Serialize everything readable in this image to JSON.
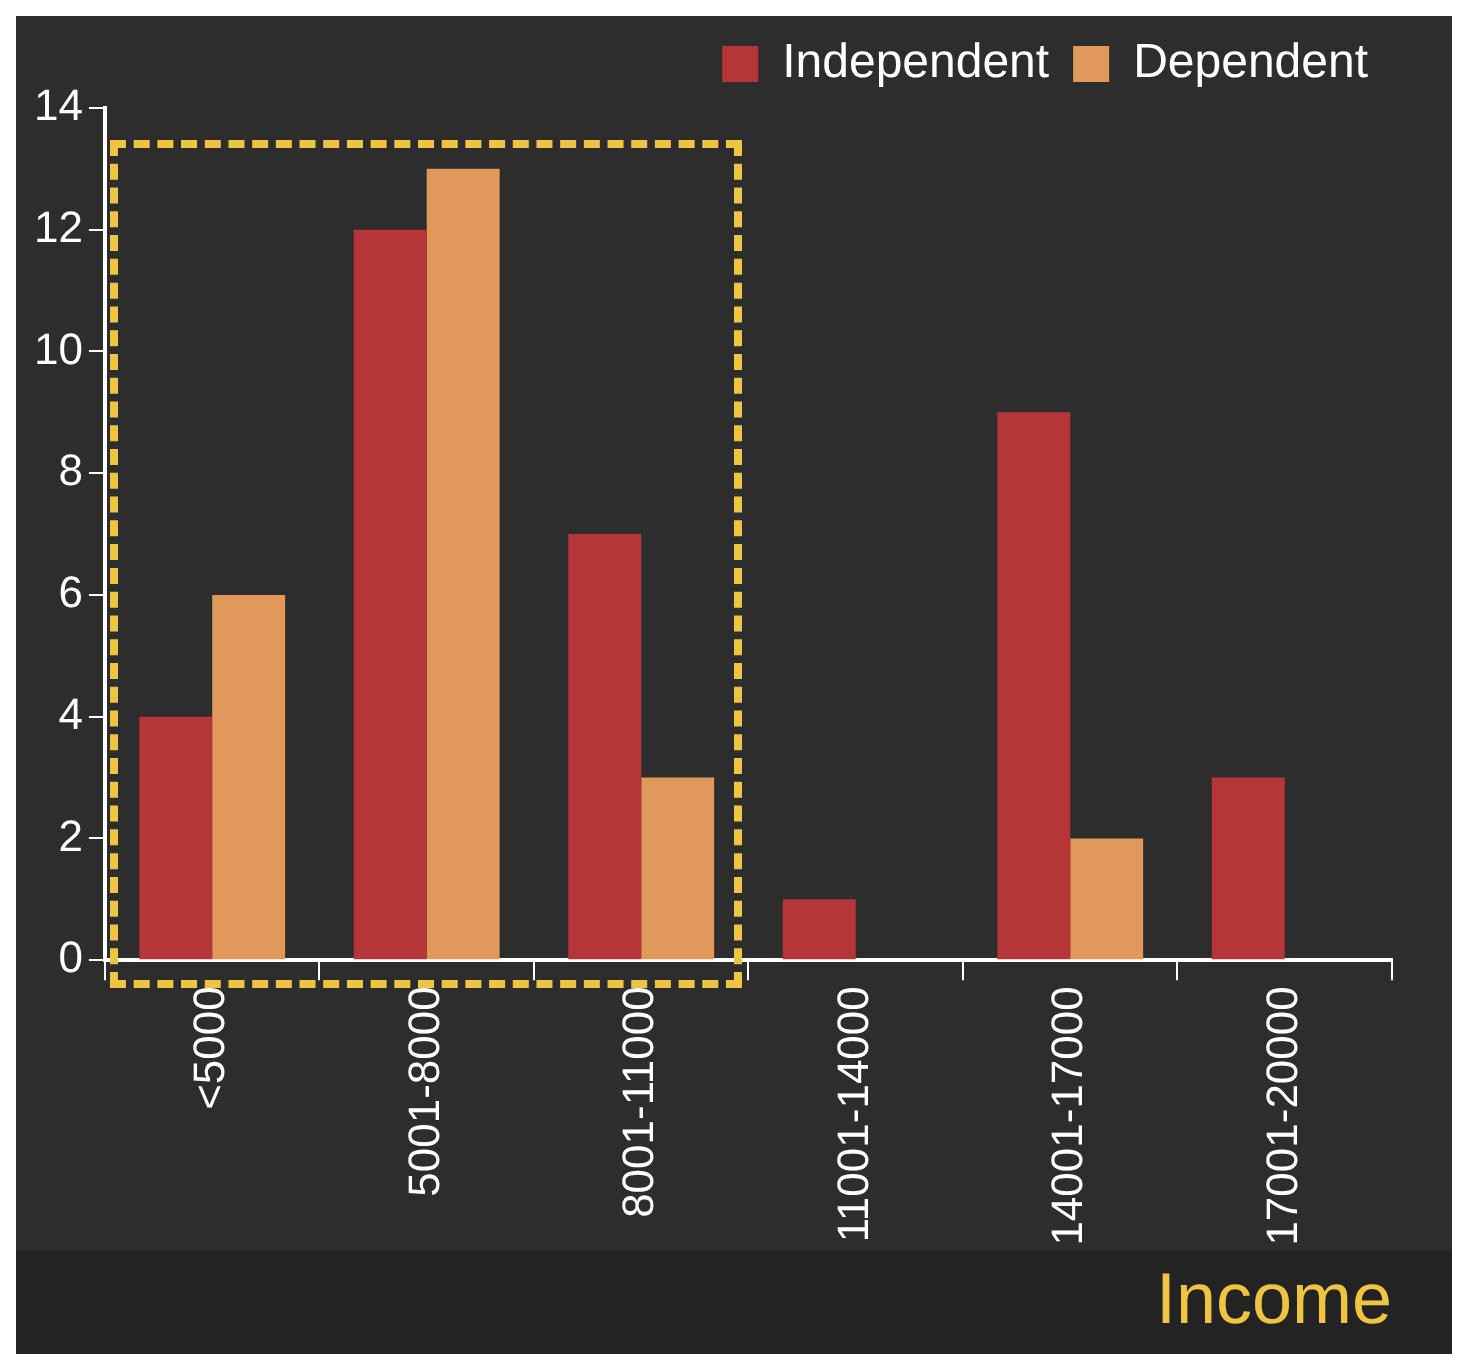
{
  "chart_data": {
    "type": "bar",
    "xlabel": "Income",
    "categories": [
      "<5000",
      "5001-8000",
      "8001-11000",
      "11001-14000",
      "14001-17000",
      "17001-20000"
    ],
    "series": [
      {
        "name": "Independent",
        "color": "#b53538",
        "values": [
          4,
          12,
          7,
          1,
          9,
          3
        ]
      },
      {
        "name": "Dependent",
        "color": "#e0995a",
        "values": [
          6,
          13,
          3,
          0,
          2,
          0
        ]
      }
    ],
    "ylim": [
      0,
      14
    ],
    "yticks": [
      0,
      2,
      4,
      6,
      8,
      10,
      12,
      14
    ],
    "grid": false,
    "legend": "top right"
  }
}
